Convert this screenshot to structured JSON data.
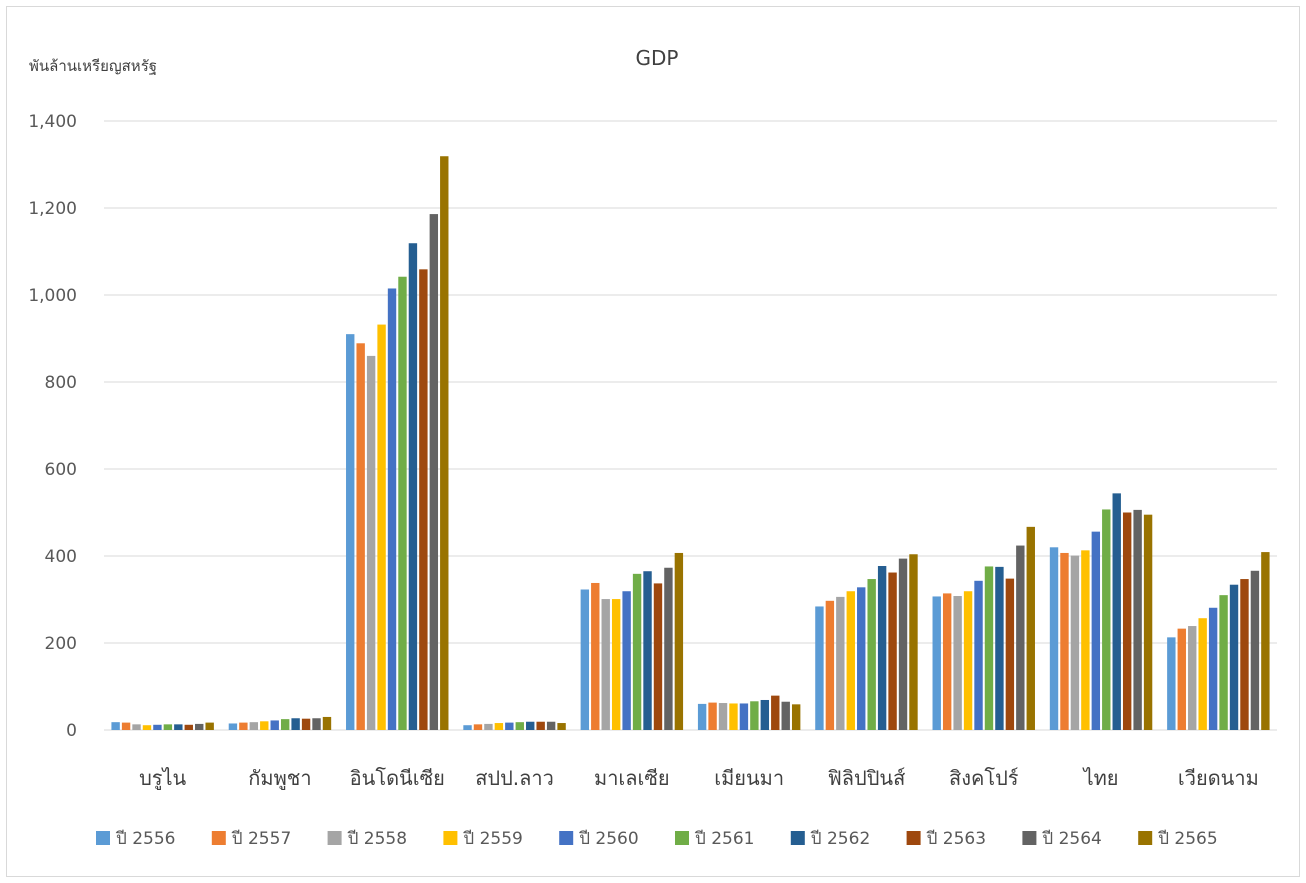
{
  "chart_data": {
    "type": "bar",
    "title": "GDP",
    "ylabel": "พันล้านเหรียญสหรัฐ",
    "xlabel": "",
    "ylim": [
      0,
      1400
    ],
    "yticks": [
      0,
      200,
      400,
      600,
      800,
      1000,
      1200,
      1400
    ],
    "ytick_labels": [
      "0",
      "200",
      "400",
      "600",
      "800",
      "1,000",
      "1,200",
      "1,400"
    ],
    "grid": true,
    "legend_position": "bottom",
    "categories": [
      "บรูไน",
      "กัมพูชา",
      "อินโดนีเซีย",
      "สปป.ลาว",
      "มาเลเซีย",
      "เมียนมา",
      "ฟิลิปปินส์",
      "สิงคโปร์",
      "ไทย",
      "เวียดนาม"
    ],
    "series": [
      {
        "name": "ปี 2556",
        "color": "#5b9bd5",
        "values": [
          18,
          15,
          910,
          11,
          323,
          60,
          284,
          307,
          420,
          213
        ]
      },
      {
        "name": "ปี 2557",
        "color": "#ed7d31",
        "values": [
          17,
          17,
          889,
          13,
          338,
          63,
          297,
          314,
          407,
          233
        ]
      },
      {
        "name": "ปี 2558",
        "color": "#a5a5a5",
        "values": [
          13,
          18,
          860,
          14,
          301,
          62,
          306,
          308,
          401,
          239
        ]
      },
      {
        "name": "ปี 2559",
        "color": "#ffc000",
        "values": [
          11,
          20,
          932,
          16,
          301,
          61,
          319,
          319,
          413,
          257
        ]
      },
      {
        "name": "ปี 2560",
        "color": "#4472c4",
        "values": [
          12,
          22,
          1015,
          17,
          319,
          61,
          328,
          343,
          456,
          281
        ]
      },
      {
        "name": "ปี 2561",
        "color": "#70ad47",
        "values": [
          13,
          25,
          1042,
          18,
          359,
          66,
          347,
          376,
          507,
          310
        ]
      },
      {
        "name": "ปี 2562",
        "color": "#255e91",
        "values": [
          13,
          27,
          1119,
          19,
          365,
          69,
          377,
          375,
          544,
          334
        ]
      },
      {
        "name": "ปี 2563",
        "color": "#9e480e",
        "values": [
          12,
          26,
          1059,
          19,
          337,
          79,
          362,
          348,
          500,
          347
        ]
      },
      {
        "name": "ปี 2564",
        "color": "#636363",
        "values": [
          14,
          27,
          1186,
          19,
          373,
          65,
          394,
          424,
          506,
          366
        ]
      },
      {
        "name": "ปี 2565",
        "color": "#997300",
        "values": [
          17,
          30,
          1319,
          16,
          407,
          59,
          404,
          467,
          495,
          409
        ]
      }
    ]
  }
}
